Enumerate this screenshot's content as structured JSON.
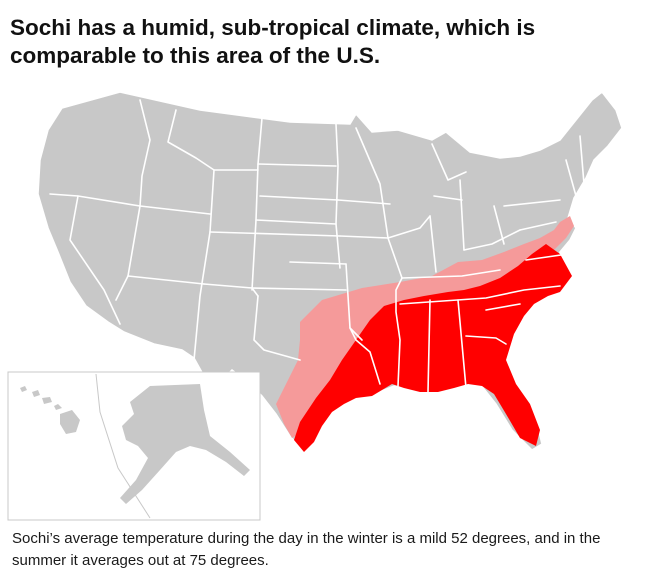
{
  "headline": "Sochi has a humid, sub-tropical climate, which is comparable to this area of the U.S.",
  "caption": "Sochi’s average temperature during the day in the winter is a mild 52 degrees, and in the summer it averages out at 75 degrees.",
  "colors": {
    "land": "#c8c8c8",
    "border": "#ffffff",
    "core_region": "#ff0000",
    "transition_region": "#f59a9a",
    "background": "#ffffff"
  }
}
